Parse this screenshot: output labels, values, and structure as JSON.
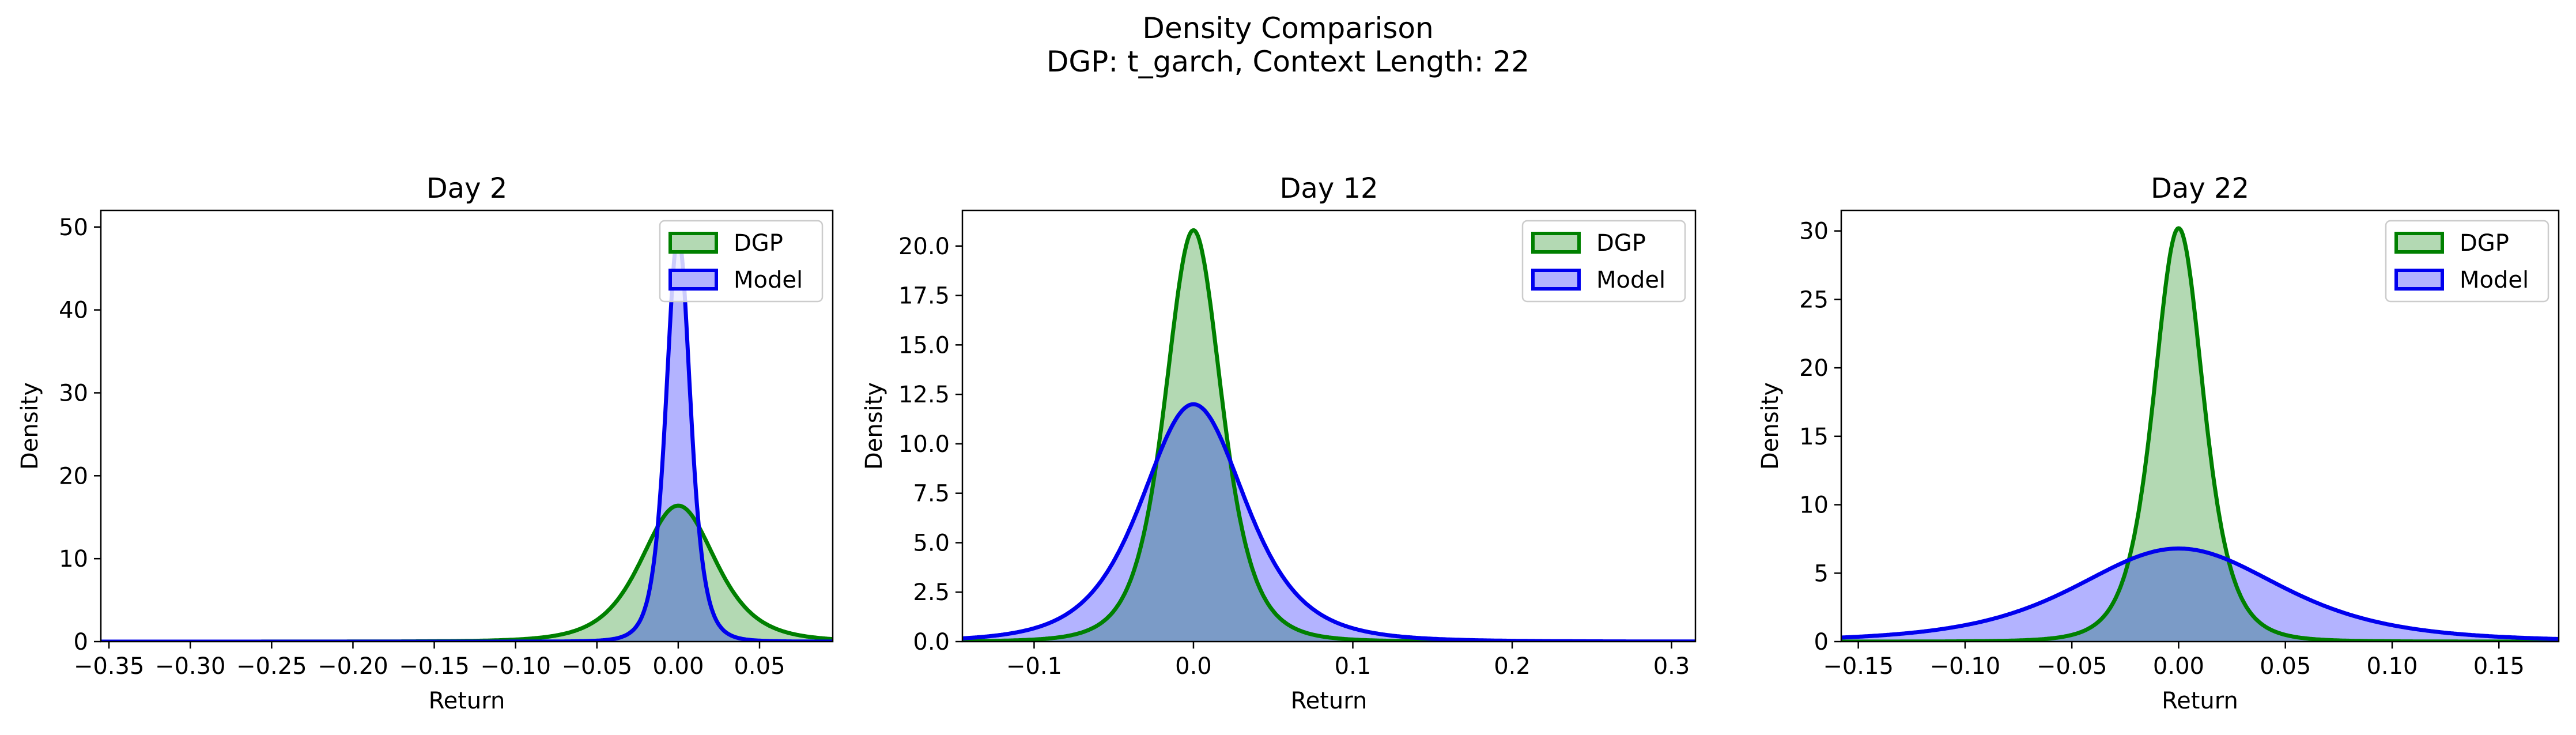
{
  "figure": {
    "title_line1": "Density Comparison",
    "title_line2": "DGP: t_garch, Context Length: 22"
  },
  "colors": {
    "dgp_line": "#008000",
    "dgp_fill": "#B3D9B3",
    "model_line": "#0000EE",
    "model_fill": "#B3B3FF",
    "overlap_fill": "#7B9BC7"
  },
  "chart_data": [
    {
      "type": "area",
      "title": "Day 2",
      "xlabel": "Return",
      "ylabel": "Density",
      "xlim": [
        -0.355,
        0.095
      ],
      "ylim": [
        0,
        52
      ],
      "xticks": [
        -0.35,
        -0.3,
        -0.25,
        -0.2,
        -0.15,
        -0.1,
        -0.05,
        0.0,
        0.05
      ],
      "xtick_labels": [
        "−0.35",
        "−0.30",
        "−0.25",
        "−0.20",
        "−0.15",
        "−0.10",
        "−0.05",
        "0.00",
        "0.05"
      ],
      "yticks": [
        0,
        10,
        20,
        30,
        40,
        50
      ],
      "ytick_labels": [
        "0",
        "10",
        "20",
        "30",
        "40",
        "50"
      ],
      "legend": "top-right",
      "series": [
        {
          "name": "DGP",
          "peak": 16.4,
          "center": 0.0,
          "scale": 0.024
        },
        {
          "name": "Model",
          "peak": 49.0,
          "center": 0.0,
          "scale": 0.0078
        }
      ]
    },
    {
      "type": "area",
      "title": "Day 12",
      "xlabel": "Return",
      "ylabel": "",
      "xlim": [
        -0.145,
        0.315
      ],
      "ylim": [
        0,
        21.8
      ],
      "xticks": [
        -0.1,
        0.0,
        0.1,
        0.2,
        0.3
      ],
      "xtick_labels": [
        "−0.1",
        "0.0",
        "0.1",
        "0.2",
        "0.3"
      ],
      "yticks": [
        0,
        2.5,
        5.0,
        7.5,
        10.0,
        12.5,
        15.0,
        17.5,
        20.0
      ],
      "ytick_labels": [
        "0.0",
        "2.5",
        "5.0",
        "7.5",
        "10.0",
        "12.5",
        "15.0",
        "17.5",
        "20.0"
      ],
      "legend": "top-right",
      "series": [
        {
          "name": "DGP",
          "peak": 20.8,
          "center": 0.0,
          "scale": 0.0185
        },
        {
          "name": "Model",
          "peak": 12.0,
          "center": 0.0,
          "scale": 0.034
        }
      ]
    },
    {
      "type": "area",
      "title": "Day 22",
      "xlabel": "Return",
      "ylabel": "Density",
      "xlim": [
        -0.158,
        0.178
      ],
      "ylim": [
        0,
        31.5
      ],
      "xticks": [
        -0.15,
        -0.1,
        -0.05,
        0.0,
        0.05,
        0.1,
        0.15
      ],
      "xtick_labels": [
        "−0.15",
        "−0.10",
        "−0.05",
        "0.00",
        "0.05",
        "0.10",
        "0.15"
      ],
      "yticks": [
        0,
        5,
        10,
        15,
        20,
        25,
        30
      ],
      "ytick_labels": [
        "0",
        "5",
        "10",
        "15",
        "20",
        "25",
        "30"
      ],
      "legend": "top-right",
      "series": [
        {
          "name": "DGP",
          "peak": 30.2,
          "center": 0.0,
          "scale": 0.0122
        },
        {
          "name": "Model",
          "peak": 6.8,
          "center": 0.0,
          "scale": 0.05
        }
      ]
    }
  ]
}
